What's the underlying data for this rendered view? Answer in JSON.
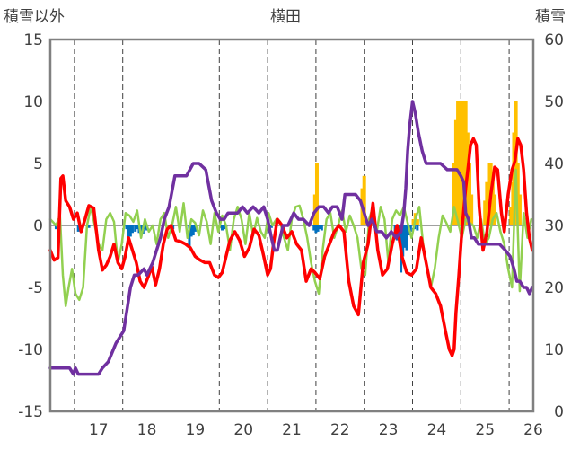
{
  "chart_data": {
    "type": "line",
    "title": "横田",
    "left_axis_label": "積雪以外",
    "right_axis_label": "積雪",
    "ylim_left": [
      -15,
      15
    ],
    "ylim_right": [
      0,
      60
    ],
    "yticks_left": [
      "15",
      "10",
      "5",
      "0",
      "-5",
      "-10",
      "-15"
    ],
    "yticks_right": [
      "60",
      "50",
      "40",
      "30",
      "20",
      "10",
      "0"
    ],
    "x_range": [
      16.5,
      26.5
    ],
    "x_ticks": [
      "17",
      "18",
      "19",
      "20",
      "21",
      "22",
      "23",
      "24",
      "25",
      "26"
    ],
    "grid": "dashed vertical at day boundaries",
    "colors": {
      "temperature": "#ff0000",
      "green_series": "#92d050",
      "snow_depth": "#7030a0",
      "precipitation": "#0070c0",
      "snowfall": "#ffc000"
    },
    "series": [
      {
        "key": "temperature",
        "axis": "left",
        "x": [
          16.5,
          16.58,
          16.66,
          16.72,
          16.76,
          16.82,
          16.9,
          16.98,
          17.06,
          17.14,
          17.22,
          17.3,
          17.4,
          17.5,
          17.58,
          17.66,
          17.74,
          17.82,
          17.9,
          17.98,
          18.05,
          18.12,
          18.2,
          18.28,
          18.36,
          18.44,
          18.52,
          18.6,
          18.68,
          18.76,
          18.84,
          18.92,
          19.0,
          19.1,
          19.2,
          19.3,
          19.4,
          19.5,
          19.6,
          19.7,
          19.8,
          19.9,
          19.98,
          20.06,
          20.14,
          20.22,
          20.32,
          20.42,
          20.52,
          20.62,
          20.72,
          20.82,
          20.92,
          21.0,
          21.06,
          21.12,
          21.2,
          21.3,
          21.4,
          21.5,
          21.6,
          21.7,
          21.8,
          21.9,
          21.98,
          22.08,
          22.18,
          22.28,
          22.38,
          22.48,
          22.58,
          22.68,
          22.78,
          22.88,
          22.98,
          23.08,
          23.18,
          23.28,
          23.38,
          23.48,
          23.58,
          23.68,
          23.78,
          23.88,
          23.98,
          24.08,
          24.18,
          24.28,
          24.38,
          24.48,
          24.58,
          24.68,
          24.76,
          24.82,
          24.86,
          24.9,
          24.96,
          25.02,
          25.1,
          25.16,
          25.2,
          25.26,
          25.32,
          25.38,
          25.46,
          25.54,
          25.62,
          25.7,
          25.76,
          25.84,
          25.9,
          25.98,
          26.06,
          26.12,
          26.18,
          26.24,
          26.3,
          26.36,
          26.42,
          26.48
        ],
        "y": [
          -2,
          -2.8,
          -2.6,
          3.8,
          4,
          2,
          1.5,
          0.5,
          1,
          -0.5,
          0.5,
          1.6,
          1.4,
          -2,
          -3.6,
          -3.2,
          -2.5,
          -1.5,
          -3,
          -3.5,
          -2.5,
          -1,
          -2,
          -3,
          -4.5,
          -5,
          -4.2,
          -3.3,
          -4.8,
          -3.5,
          -1.5,
          -0.3,
          0,
          -1.2,
          -1.3,
          -1.5,
          -1.8,
          -2.5,
          -2.8,
          -3,
          -3,
          -4,
          -4.2,
          -3.8,
          -2.5,
          -1.2,
          -0.5,
          -1.2,
          -2.5,
          -1.8,
          -0.3,
          -0.8,
          -2.5,
          -4,
          -3.5,
          -1.5,
          0.5,
          0,
          -1,
          -0.5,
          -1.5,
          -2,
          -4.5,
          -3.5,
          -3.8,
          -4.3,
          -2.5,
          -1.5,
          -0.5,
          0,
          -0.5,
          -4.5,
          -6.5,
          -7.2,
          -3,
          -1.5,
          1.8,
          -2,
          -4,
          -3.5,
          -1.5,
          0,
          -2.5,
          -3.8,
          -4,
          -3.5,
          -1,
          -3,
          -5,
          -5.5,
          -6.5,
          -8.5,
          -10,
          -10.5,
          -10,
          -7,
          -4,
          -0.5,
          3,
          5,
          6.5,
          7,
          6.5,
          1.5,
          -2,
          -0.5,
          2.5,
          4.7,
          4.5,
          1,
          -0.5,
          2.5,
          4.5,
          5.2,
          7,
          6.5,
          4.5,
          1,
          -1,
          -2
        ]
      },
      {
        "key": "green_series",
        "axis": "left",
        "x": [
          16.5,
          16.55,
          16.62,
          16.7,
          16.76,
          16.82,
          16.88,
          16.95,
          17.02,
          17.1,
          17.18,
          17.26,
          17.34,
          17.42,
          17.5,
          17.58,
          17.66,
          17.74,
          17.82,
          17.9,
          17.98,
          18.06,
          18.14,
          18.22,
          18.3,
          18.38,
          18.46,
          18.54,
          18.62,
          18.7,
          18.78,
          18.86,
          18.94,
          19.02,
          19.1,
          19.18,
          19.26,
          19.34,
          19.42,
          19.5,
          19.58,
          19.66,
          19.74,
          19.82,
          19.9,
          19.98,
          20.06,
          20.14,
          20.22,
          20.3,
          20.38,
          20.46,
          20.54,
          20.62,
          20.7,
          20.78,
          20.86,
          20.94,
          21.02,
          21.1,
          21.18,
          21.26,
          21.34,
          21.42,
          21.5,
          21.58,
          21.66,
          21.74,
          21.82,
          21.9,
          21.98,
          22.06,
          22.14,
          22.22,
          22.3,
          22.38,
          22.46,
          22.54,
          22.62,
          22.7,
          22.78,
          22.86,
          22.94,
          23.02,
          23.1,
          23.18,
          23.26,
          23.34,
          23.42,
          23.5,
          23.58,
          23.66,
          23.74,
          23.82,
          23.9,
          23.98,
          24.06,
          24.14,
          24.22,
          24.3,
          24.38,
          24.46,
          24.54,
          24.62,
          24.7,
          24.78,
          24.86,
          24.94,
          25.02,
          25.1,
          25.18,
          25.26,
          25.34,
          25.42,
          25.5,
          25.58,
          25.66,
          25.74,
          25.82,
          25.9,
          25.98,
          26.06,
          26.14,
          26.22,
          26.3,
          26.38,
          26.46
        ],
        "y": [
          0.5,
          0.3,
          0,
          0.8,
          -4,
          -6.5,
          -5,
          -3.5,
          -5.5,
          -6,
          -5,
          0,
          1.5,
          0,
          -1.5,
          -2,
          0.5,
          1,
          0.3,
          -3,
          -1.5,
          1,
          0.8,
          0.3,
          1.2,
          -1,
          0.5,
          -0.5,
          0,
          -1.5,
          0.5,
          1,
          -1,
          0,
          1.5,
          -0.5,
          1.8,
          -1,
          0.5,
          0.2,
          -0.8,
          1.2,
          0.3,
          -1.5,
          1,
          -0.5,
          0.8,
          0,
          -2,
          0.5,
          1.5,
          0.5,
          -1.5,
          1,
          -0.8,
          0.6,
          -0.5,
          -1,
          1,
          0,
          0.5,
          0.3,
          -1,
          -2,
          0.5,
          1.5,
          1.6,
          0.5,
          -1,
          -3,
          -4.5,
          -5.5,
          -2,
          0.5,
          1,
          -1,
          0,
          1.2,
          -0.5,
          0.8,
          0,
          -1,
          -3.5,
          -4,
          0.5,
          1.5,
          -0.5,
          1.5,
          0.5,
          -3,
          0.5,
          1.2,
          0.8,
          1.5,
          0.2,
          -1,
          0.5,
          1.5,
          -1.5,
          -3.5,
          -5,
          -3.5,
          -1,
          0.8,
          0.2,
          -0.5,
          1.5,
          0.3,
          -1,
          0.5,
          0.2,
          0,
          -1,
          0.5,
          -1.5,
          -1,
          0.5,
          1,
          -0.5,
          -1.5,
          -3.5,
          -5,
          4.5,
          -5.3,
          1,
          -1,
          0.5
        ]
      },
      {
        "key": "snow_depth",
        "axis": "right",
        "x": [
          16.5,
          16.9,
          16.98,
          17.02,
          17.08,
          17.14,
          17.2,
          17.26,
          17.32,
          17.4,
          17.5,
          17.58,
          17.7,
          17.86,
          18.02,
          18.1,
          18.16,
          18.24,
          18.32,
          18.44,
          18.5,
          18.62,
          18.7,
          18.78,
          18.86,
          18.96,
          19.08,
          19.2,
          19.32,
          19.46,
          19.58,
          19.72,
          19.84,
          19.94,
          20.02,
          20.1,
          20.18,
          20.28,
          20.38,
          20.48,
          20.58,
          20.7,
          20.82,
          20.92,
          21.0,
          21.08,
          21.14,
          21.2,
          21.26,
          21.32,
          21.42,
          21.54,
          21.64,
          21.74,
          21.86,
          21.96,
          22.06,
          22.16,
          22.26,
          22.34,
          22.44,
          22.54,
          22.6,
          22.72,
          22.82,
          22.92,
          23.0,
          23.08,
          23.16,
          23.26,
          23.36,
          23.46,
          23.56,
          23.66,
          23.76,
          23.82,
          23.86,
          23.9,
          23.94,
          24.0,
          24.06,
          24.12,
          24.2,
          24.28,
          24.38,
          24.48,
          24.58,
          24.72,
          24.82,
          24.92,
          25.0,
          25.06,
          25.1,
          25.16,
          25.22,
          25.28,
          25.36,
          25.5,
          25.64,
          25.8,
          25.92,
          26.02,
          26.1,
          26.16,
          26.22,
          26.3,
          26.36,
          26.42,
          26.48
        ],
        "y": [
          7,
          7,
          6,
          7,
          6,
          6,
          6,
          6,
          6,
          6,
          6,
          7,
          8,
          11,
          13,
          17,
          20,
          22,
          22,
          23,
          22,
          24,
          26,
          28,
          31,
          33,
          38,
          38,
          38,
          40,
          40,
          39,
          34,
          32,
          31,
          31,
          32,
          32,
          32,
          33,
          32,
          33,
          32,
          33,
          31,
          28,
          26,
          26,
          28,
          30,
          30,
          32,
          31,
          31,
          30,
          32,
          33,
          33,
          32,
          33,
          33,
          31,
          35,
          35,
          35,
          34,
          32,
          30,
          31,
          29,
          29,
          28,
          29,
          28,
          29,
          32,
          36,
          42,
          46,
          50,
          48,
          45,
          42,
          40,
          40,
          40,
          40,
          39,
          39,
          39,
          38,
          37,
          32,
          31,
          28,
          28,
          27,
          27,
          27,
          27,
          26,
          25,
          23,
          21,
          21,
          20,
          20,
          19,
          20
        ]
      }
    ],
    "precipitation": {
      "axis": "left",
      "bars": [
        [
          16.62,
          -0.3
        ],
        [
          16.68,
          -0.2
        ],
        [
          17.08,
          -0.5
        ],
        [
          17.16,
          -0.3
        ],
        [
          17.3,
          -0.2
        ],
        [
          18.08,
          -0.3
        ],
        [
          18.12,
          -1
        ],
        [
          18.16,
          -0.9
        ],
        [
          18.2,
          -0.6
        ],
        [
          18.26,
          -0.5
        ],
        [
          18.3,
          -0.3
        ],
        [
          18.34,
          -0.6
        ],
        [
          18.38,
          -0.5
        ],
        [
          18.42,
          -0.7
        ],
        [
          18.46,
          -0.3
        ],
        [
          18.5,
          -0.4
        ],
        [
          19.0,
          -0.4
        ],
        [
          19.04,
          -0.3
        ],
        [
          19.38,
          -1.7
        ],
        [
          19.42,
          -0.9
        ],
        [
          19.46,
          -0.8
        ],
        [
          19.5,
          -0.5
        ],
        [
          20.02,
          -0.2
        ],
        [
          20.06,
          -0.4
        ],
        [
          20.1,
          -0.3
        ],
        [
          20.14,
          -0.2
        ],
        [
          21.0,
          -0.3
        ],
        [
          21.04,
          -0.6
        ],
        [
          21.08,
          -0.2
        ],
        [
          21.96,
          -0.4
        ],
        [
          22.0,
          -0.6
        ],
        [
          22.04,
          -0.5
        ],
        [
          22.08,
          -0.3
        ],
        [
          22.12,
          -0.4
        ],
        [
          23.64,
          -0.6
        ],
        [
          23.68,
          -1.2
        ],
        [
          23.72,
          -1.1
        ],
        [
          23.76,
          -3.8
        ],
        [
          23.8,
          -2.5
        ],
        [
          23.84,
          -1.8
        ],
        [
          23.88,
          -2
        ],
        [
          23.92,
          -0.8
        ],
        [
          23.96,
          -0.5
        ],
        [
          24.04,
          -0.3
        ],
        [
          24.1,
          -0.4
        ]
      ]
    },
    "snowfall": {
      "axis": "right",
      "bars": [
        [
          21.98,
          35
        ],
        [
          22.02,
          40
        ],
        [
          22.96,
          36
        ],
        [
          23.0,
          38
        ],
        [
          24.02,
          31
        ],
        [
          24.06,
          32
        ],
        [
          24.1,
          31
        ],
        [
          24.86,
          40
        ],
        [
          24.9,
          47
        ],
        [
          24.94,
          50
        ],
        [
          24.98,
          50
        ],
        [
          25.02,
          50
        ],
        [
          25.06,
          50
        ],
        [
          25.1,
          50
        ],
        [
          25.14,
          45
        ],
        [
          25.18,
          40
        ],
        [
          25.22,
          35
        ],
        [
          25.5,
          34
        ],
        [
          25.54,
          37
        ],
        [
          25.58,
          40
        ],
        [
          25.62,
          40
        ],
        [
          25.66,
          38
        ],
        [
          25.7,
          35
        ],
        [
          26.04,
          33
        ],
        [
          26.08,
          37
        ],
        [
          26.1,
          45
        ],
        [
          26.14,
          50
        ],
        [
          26.18,
          40
        ],
        [
          26.22,
          35
        ],
        [
          26.26,
          30
        ]
      ]
    }
  }
}
